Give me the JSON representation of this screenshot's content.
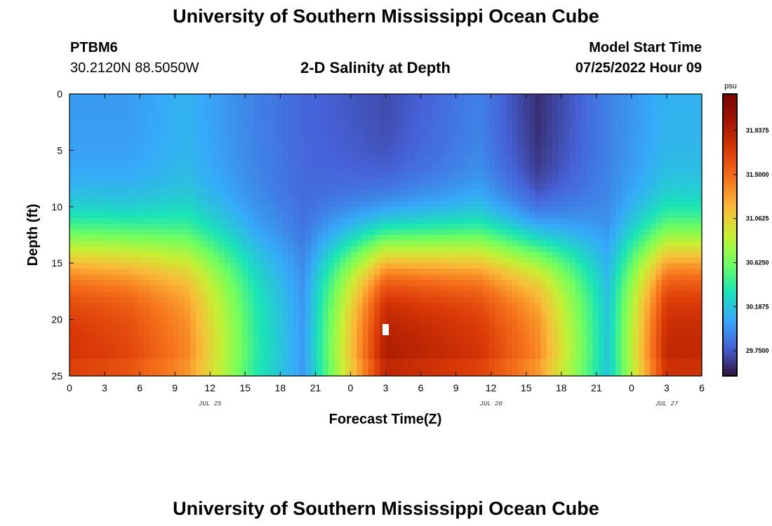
{
  "header": {
    "title": "University of Southern Mississippi Ocean Cube",
    "station": "PTBM6",
    "coords": "30.2120N  88.5050W",
    "plot_title": "2-D Salinity at Depth",
    "model_label": "Model Start Time",
    "model_time": "07/25/2022 Hour 09"
  },
  "footer": {
    "title": "University of Southern Mississippi Ocean Cube"
  },
  "chart_data": {
    "type": "heatmap",
    "title": "2-D Salinity at Depth",
    "xlabel": "Forecast Time(Z)",
    "ylabel": "Depth (ft)",
    "x_ticks": [
      "0",
      "3",
      "6",
      "9",
      "12",
      "15",
      "18",
      "21",
      "0",
      "3",
      "6",
      "9",
      "12",
      "15",
      "18",
      "21",
      "0",
      "3",
      "6"
    ],
    "x_range_hours": [
      0,
      54
    ],
    "date_labels": [
      {
        "label": "JUL 25",
        "hour": 12
      },
      {
        "label": "JUL 26",
        "hour": 36
      },
      {
        "label": "JUL 27",
        "hour": 51
      }
    ],
    "y_ticks": [
      "0",
      "5",
      "10",
      "15",
      "20",
      "25"
    ],
    "y_range_ft": [
      0,
      25
    ],
    "colorbar": {
      "unit": "psu",
      "min": 29.5,
      "max": 32.3,
      "labels": [
        "31.9375",
        "31.5000",
        "31.0625",
        "30.6250",
        "30.1875",
        "29.7500"
      ]
    },
    "series": [
      {
        "values_psu_by_time_hour": [
          {
            "hour": 0,
            "surface": 30.0,
            "bottom": 31.8
          },
          {
            "hour": 5,
            "surface": 30.0,
            "bottom": 31.7
          },
          {
            "hour": 10,
            "surface": 30.1,
            "bottom": 31.4
          },
          {
            "hour": 16,
            "surface": 29.9,
            "bottom": 30.4
          },
          {
            "hour": 20,
            "surface": 29.8,
            "bottom": 30.0
          },
          {
            "hour": 27,
            "surface": 29.7,
            "bottom": 32.0
          },
          {
            "hour": 35,
            "surface": 29.9,
            "bottom": 31.8
          },
          {
            "hour": 40,
            "surface": 29.6,
            "bottom": 31.4
          },
          {
            "hour": 46,
            "surface": 29.9,
            "bottom": 30.2
          },
          {
            "hour": 51,
            "surface": 30.1,
            "bottom": 31.9
          }
        ]
      }
    ]
  }
}
